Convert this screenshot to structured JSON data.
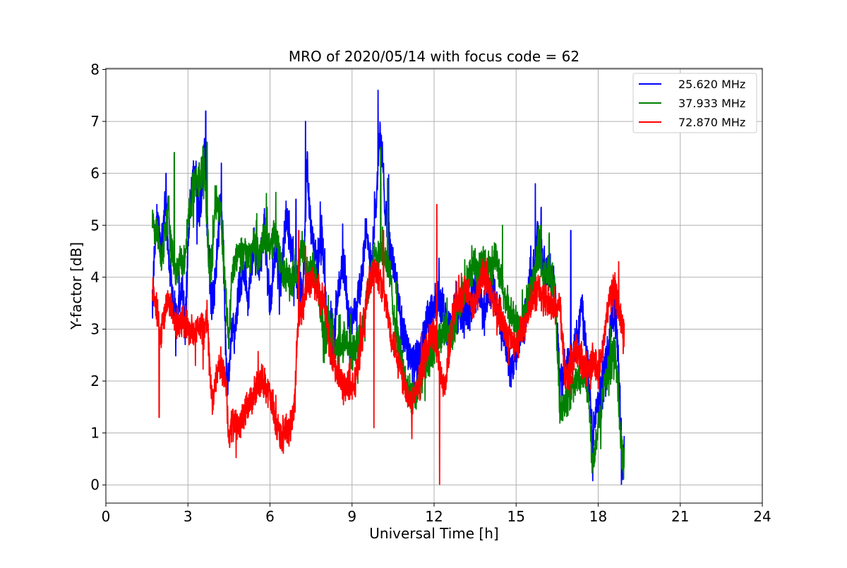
{
  "chart_data": {
    "type": "line",
    "title": "MRO of 2020/05/14 with focus code = 62",
    "xlabel": "Universal Time [h]",
    "ylabel": "Y-factor [dB]",
    "xlim": [
      0,
      24
    ],
    "ylim": [
      -0.35,
      8.02
    ],
    "xticks": [
      0,
      3,
      6,
      9,
      12,
      15,
      18,
      21,
      24
    ],
    "yticks": [
      0,
      1,
      2,
      3,
      4,
      5,
      6,
      7,
      8
    ],
    "grid": true,
    "legend_position": "top-right",
    "series": [
      {
        "name": "25.620 MHz",
        "color": "#0000ff",
        "x": [
          1.7,
          1.8,
          1.9,
          2.0,
          2.1,
          2.2,
          2.3,
          2.4,
          2.5,
          2.6,
          2.7,
          2.8,
          2.9,
          3.0,
          3.1,
          3.2,
          3.3,
          3.4,
          3.5,
          3.6,
          3.7,
          3.8,
          3.9,
          4.0,
          4.1,
          4.2,
          4.3,
          4.4,
          4.5,
          4.6,
          4.7,
          4.8,
          4.9,
          5.0,
          5.2,
          5.4,
          5.6,
          5.8,
          6.0,
          6.2,
          6.4,
          6.6,
          6.8,
          7.0,
          7.2,
          7.35,
          7.5,
          7.7,
          7.9,
          8.1,
          8.3,
          8.5,
          8.7,
          8.9,
          9.1,
          9.3,
          9.5,
          9.7,
          9.9,
          10.0,
          10.1,
          10.2,
          10.4,
          10.6,
          10.8,
          11.0,
          11.2,
          11.4,
          11.6,
          11.8,
          12.0,
          12.2,
          12.4,
          12.6,
          12.8,
          13.0,
          13.2,
          13.4,
          13.6,
          13.8,
          14.0,
          14.2,
          14.4,
          14.6,
          14.8,
          15.0,
          15.2,
          15.4,
          15.6,
          15.8,
          16.0,
          16.2,
          16.4,
          16.6,
          16.8,
          17.0,
          17.2,
          17.4,
          17.6,
          17.8,
          18.0,
          18.2,
          18.4,
          18.6,
          18.7,
          18.8,
          18.9,
          18.95
        ],
        "y": [
          3.5,
          4.8,
          5.2,
          4.5,
          5.0,
          5.5,
          4.2,
          3.8,
          3.5,
          3.2,
          3.5,
          3.8,
          3.0,
          4.5,
          5.5,
          6.0,
          5.8,
          5.2,
          5.6,
          6.5,
          5.0,
          3.8,
          3.5,
          4.0,
          4.8,
          5.5,
          4.5,
          2.2,
          2.0,
          3.0,
          2.8,
          3.5,
          3.8,
          4.3,
          3.6,
          4.6,
          4.2,
          4.9,
          3.4,
          4.6,
          4.0,
          5.3,
          4.5,
          4.0,
          3.6,
          6.2,
          5.0,
          4.2,
          4.8,
          3.2,
          2.5,
          3.8,
          4.3,
          3.0,
          3.5,
          3.8,
          4.8,
          4.3,
          5.5,
          6.8,
          6.3,
          5.5,
          4.5,
          4.0,
          3.0,
          2.8,
          2.3,
          2.4,
          2.8,
          3.2,
          3.4,
          3.6,
          3.2,
          3.0,
          3.2,
          3.3,
          3.2,
          3.6,
          3.9,
          3.4,
          3.6,
          3.8,
          3.2,
          2.8,
          2.2,
          2.5,
          3.0,
          3.5,
          4.0,
          4.8,
          4.2,
          4.0,
          4.0,
          2.0,
          2.2,
          2.5,
          2.8,
          3.5,
          2.5,
          1.0,
          1.5,
          2.0,
          2.8,
          3.5,
          2.8,
          1.5,
          0.3,
          0.8
        ],
        "noise": 0.7,
        "spikes": [
          [
            3.65,
            7.2
          ],
          [
            7.3,
            7.0
          ],
          [
            9.95,
            7.6
          ],
          [
            2.2,
            6.0
          ],
          [
            6.95,
            5.5
          ],
          [
            15.7,
            5.8
          ],
          [
            17.0,
            4.9
          ],
          [
            18.85,
            0.0
          ]
        ]
      },
      {
        "name": "37.933 MHz",
        "color": "#008000",
        "x": [
          1.7,
          1.8,
          1.9,
          2.0,
          2.1,
          2.2,
          2.3,
          2.4,
          2.5,
          2.6,
          2.7,
          2.8,
          2.9,
          3.0,
          3.2,
          3.4,
          3.6,
          3.7,
          3.8,
          3.9,
          4.0,
          4.2,
          4.4,
          4.5,
          4.6,
          4.8,
          5.0,
          5.2,
          5.4,
          5.6,
          5.8,
          6.0,
          6.2,
          6.4,
          6.6,
          6.8,
          7.0,
          7.2,
          7.4,
          7.6,
          7.8,
          8.0,
          8.2,
          8.4,
          8.6,
          8.8,
          9.0,
          9.2,
          9.4,
          9.6,
          9.8,
          10.0,
          10.2,
          10.4,
          10.6,
          10.8,
          11.0,
          11.2,
          11.4,
          11.6,
          11.8,
          12.0,
          12.2,
          12.4,
          12.6,
          12.8,
          13.0,
          13.2,
          13.4,
          13.6,
          13.8,
          14.0,
          14.2,
          14.4,
          14.6,
          14.8,
          15.0,
          15.2,
          15.4,
          15.6,
          15.8,
          16.0,
          16.2,
          16.4,
          16.6,
          16.8,
          17.0,
          17.2,
          17.4,
          17.6,
          17.8,
          18.0,
          18.2,
          18.4,
          18.6,
          18.7,
          18.8,
          18.9,
          18.95
        ],
        "y": [
          5.2,
          4.9,
          4.8,
          4.4,
          4.6,
          5.0,
          5.4,
          4.5,
          4.2,
          4.0,
          4.4,
          4.2,
          4.3,
          5.2,
          5.7,
          5.9,
          6.2,
          5.0,
          4.0,
          4.5,
          5.5,
          5.3,
          3.5,
          2.8,
          4.0,
          4.4,
          4.5,
          4.4,
          4.6,
          4.4,
          4.8,
          4.6,
          4.9,
          4.2,
          4.0,
          3.9,
          4.2,
          4.6,
          4.0,
          4.2,
          3.5,
          2.8,
          3.0,
          2.6,
          2.6,
          2.8,
          2.5,
          2.7,
          3.2,
          3.8,
          4.3,
          4.5,
          4.4,
          4.0,
          3.0,
          2.5,
          1.8,
          1.7,
          1.9,
          2.2,
          2.4,
          2.6,
          2.8,
          3.0,
          2.8,
          3.2,
          3.5,
          3.9,
          4.2,
          4.1,
          4.3,
          4.2,
          4.4,
          4.0,
          3.6,
          3.3,
          3.1,
          3.0,
          3.5,
          3.9,
          4.4,
          4.0,
          4.1,
          3.8,
          1.5,
          1.6,
          1.8,
          2.0,
          2.2,
          2.0,
          0.4,
          1.2,
          1.8,
          2.2,
          2.6,
          2.2,
          1.0,
          0.5,
          0.5
        ],
        "noise": 0.6,
        "spikes": [
          [
            2.5,
            6.4
          ],
          [
            3.7,
            6.6
          ],
          [
            10.05,
            6.5
          ],
          [
            10.3,
            5.9
          ],
          [
            14.5,
            5.0
          ],
          [
            15.9,
            5.0
          ]
        ]
      },
      {
        "name": "72.870 MHz",
        "color": "#ff0000",
        "x": [
          1.7,
          1.8,
          1.9,
          2.0,
          2.1,
          2.2,
          2.3,
          2.4,
          2.6,
          2.8,
          3.0,
          3.2,
          3.4,
          3.6,
          3.7,
          3.8,
          3.9,
          4.0,
          4.2,
          4.4,
          4.5,
          4.6,
          4.8,
          5.0,
          5.2,
          5.4,
          5.6,
          5.8,
          6.0,
          6.2,
          6.4,
          6.6,
          6.8,
          6.9,
          7.0,
          7.2,
          7.4,
          7.6,
          7.8,
          8.0,
          8.2,
          8.4,
          8.6,
          8.8,
          9.0,
          9.2,
          9.4,
          9.6,
          9.8,
          10.0,
          10.2,
          10.4,
          10.6,
          10.8,
          11.0,
          11.2,
          11.4,
          11.6,
          11.8,
          12.0,
          12.2,
          12.4,
          12.6,
          12.8,
          13.0,
          13.2,
          13.4,
          13.6,
          13.8,
          14.0,
          14.2,
          14.4,
          14.6,
          14.8,
          15.0,
          15.2,
          15.4,
          15.6,
          15.8,
          16.0,
          16.2,
          16.4,
          16.6,
          16.8,
          17.0,
          17.2,
          17.4,
          17.6,
          17.8,
          18.0,
          18.2,
          18.4,
          18.6,
          18.7,
          18.8,
          18.9,
          18.95
        ],
        "y": [
          3.8,
          3.6,
          3.2,
          2.8,
          3.2,
          3.5,
          3.6,
          3.4,
          3.0,
          3.2,
          3.0,
          2.9,
          3.1,
          3.0,
          3.3,
          2.2,
          1.5,
          2.0,
          2.3,
          2.0,
          0.8,
          1.2,
          1.1,
          1.3,
          1.5,
          1.7,
          2.0,
          2.0,
          1.7,
          1.2,
          0.9,
          1.0,
          1.2,
          1.5,
          3.0,
          3.6,
          3.8,
          3.9,
          3.7,
          3.5,
          2.6,
          2.2,
          2.0,
          1.9,
          1.8,
          2.2,
          3.0,
          3.8,
          4.2,
          4.0,
          3.6,
          3.0,
          2.6,
          2.2,
          1.8,
          1.6,
          1.8,
          2.4,
          2.8,
          3.0,
          2.2,
          1.8,
          2.8,
          3.6,
          3.5,
          3.8,
          3.4,
          3.7,
          4.1,
          3.8,
          3.5,
          3.3,
          3.0,
          2.8,
          2.6,
          3.0,
          3.2,
          3.6,
          3.8,
          3.6,
          3.5,
          3.4,
          3.5,
          2.0,
          2.3,
          2.6,
          2.4,
          2.2,
          2.4,
          2.2,
          2.7,
          3.6,
          3.8,
          3.5,
          3.3,
          3.0,
          2.9
        ],
        "noise": 0.55,
        "spikes": [
          [
            1.95,
            1.3
          ],
          [
            7.05,
            4.9
          ],
          [
            7.3,
            4.6
          ],
          [
            10.15,
            4.9
          ],
          [
            9.8,
            1.1
          ],
          [
            12.2,
            0.0
          ],
          [
            12.1,
            5.4
          ],
          [
            18.75,
            4.3
          ]
        ]
      }
    ]
  }
}
